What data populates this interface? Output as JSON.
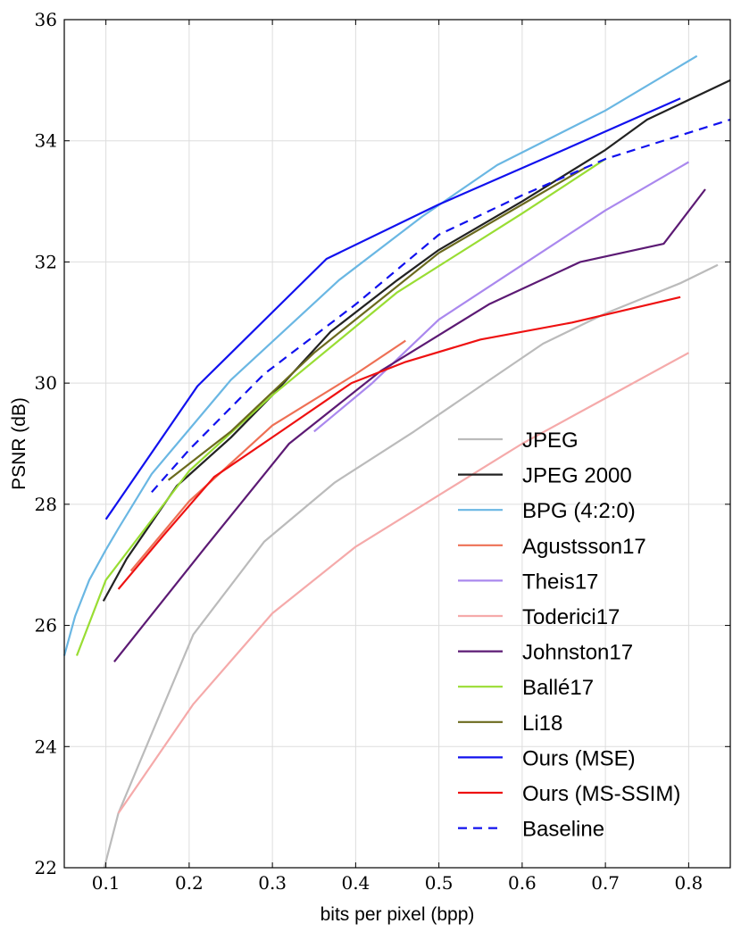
{
  "chart_data": {
    "type": "line",
    "title": "",
    "xlabel": "bits per pixel (bpp)",
    "ylabel": "PSNR (dB)",
    "xlim": [
      0.05,
      0.85
    ],
    "ylim": [
      22,
      36
    ],
    "grid": true,
    "legend_position": "lower-right",
    "x_ticks": [
      0.1,
      0.2,
      0.3,
      0.4,
      0.5,
      0.6,
      0.7,
      0.8
    ],
    "x_tick_labels": [
      "0.1",
      "0.2",
      "0.3",
      "0.4",
      "0.5",
      "0.6",
      "0.7",
      "0.8"
    ],
    "y_ticks": [
      22,
      24,
      26,
      28,
      30,
      32,
      34,
      36
    ],
    "y_tick_labels": [
      "22",
      "24",
      "26",
      "28",
      "30",
      "32",
      "34",
      "36"
    ],
    "series": [
      {
        "name": "JPEG",
        "color": "#bbbbbb",
        "dash": false,
        "points": [
          [
            0.098,
            22.0
          ],
          [
            0.115,
            22.9
          ],
          [
            0.205,
            25.85
          ],
          [
            0.29,
            27.38
          ],
          [
            0.375,
            28.36
          ],
          [
            0.47,
            29.2
          ],
          [
            0.55,
            29.95
          ],
          [
            0.625,
            30.65
          ],
          [
            0.7,
            31.15
          ],
          [
            0.79,
            31.65
          ],
          [
            0.835,
            31.95
          ]
        ]
      },
      {
        "name": "JPEG 2000",
        "color": "#222222",
        "dash": false,
        "points": [
          [
            0.097,
            26.4
          ],
          [
            0.125,
            27.1
          ],
          [
            0.185,
            28.3
          ],
          [
            0.25,
            29.1
          ],
          [
            0.3,
            29.8
          ],
          [
            0.37,
            30.85
          ],
          [
            0.45,
            31.7
          ],
          [
            0.5,
            32.2
          ],
          [
            0.6,
            33.0
          ],
          [
            0.7,
            33.85
          ],
          [
            0.75,
            34.35
          ],
          [
            0.85,
            35.0
          ]
        ]
      },
      {
        "name": "BPG (4:2:0)",
        "color": "#6ab7e3",
        "dash": false,
        "points": [
          [
            0.05,
            25.5
          ],
          [
            0.063,
            26.15
          ],
          [
            0.08,
            26.75
          ],
          [
            0.1,
            27.25
          ],
          [
            0.115,
            27.6
          ],
          [
            0.155,
            28.5
          ],
          [
            0.25,
            30.05
          ],
          [
            0.38,
            31.7
          ],
          [
            0.48,
            32.75
          ],
          [
            0.57,
            33.6
          ],
          [
            0.7,
            34.5
          ],
          [
            0.81,
            35.4
          ]
        ]
      },
      {
        "name": "Agustsson17",
        "color": "#ee7055",
        "dash": false,
        "points": [
          [
            0.13,
            26.9
          ],
          [
            0.2,
            28.05
          ],
          [
            0.3,
            29.3
          ],
          [
            0.4,
            30.15
          ],
          [
            0.46,
            30.7
          ]
        ]
      },
      {
        "name": "Theis17",
        "color": "#aa88ee",
        "dash": false,
        "points": [
          [
            0.35,
            29.2
          ],
          [
            0.42,
            30.0
          ],
          [
            0.5,
            31.05
          ],
          [
            0.6,
            31.95
          ],
          [
            0.7,
            32.85
          ],
          [
            0.8,
            33.65
          ]
        ]
      },
      {
        "name": "Toderici17",
        "color": "#f5aaaa",
        "dash": false,
        "points": [
          [
            0.115,
            22.9
          ],
          [
            0.205,
            24.7
          ],
          [
            0.3,
            26.2
          ],
          [
            0.4,
            27.3
          ],
          [
            0.5,
            28.15
          ],
          [
            0.6,
            29.0
          ],
          [
            0.7,
            29.75
          ],
          [
            0.8,
            30.5
          ]
        ]
      },
      {
        "name": "Johnston17",
        "color": "#5c1a74",
        "dash": false,
        "points": [
          [
            0.11,
            25.4
          ],
          [
            0.22,
            27.3
          ],
          [
            0.32,
            29.0
          ],
          [
            0.43,
            30.2
          ],
          [
            0.56,
            31.3
          ],
          [
            0.67,
            32.0
          ],
          [
            0.77,
            32.3
          ],
          [
            0.82,
            33.2
          ]
        ]
      },
      {
        "name": "Ballé17",
        "color": "#99dd33",
        "dash": false,
        "points": [
          [
            0.065,
            25.5
          ],
          [
            0.1,
            26.75
          ],
          [
            0.2,
            28.55
          ],
          [
            0.3,
            29.8
          ],
          [
            0.45,
            31.5
          ],
          [
            0.6,
            32.8
          ],
          [
            0.7,
            33.7
          ]
        ]
      },
      {
        "name": "Li18",
        "color": "#6b6a1e",
        "dash": false,
        "points": [
          [
            0.175,
            28.4
          ],
          [
            0.25,
            29.2
          ],
          [
            0.35,
            30.5
          ],
          [
            0.5,
            32.15
          ],
          [
            0.6,
            32.95
          ],
          [
            0.675,
            33.55
          ]
        ]
      },
      {
        "name": "Ours (MSE)",
        "color": "#1111ee",
        "dash": false,
        "points": [
          [
            0.1,
            27.75
          ],
          [
            0.21,
            29.95
          ],
          [
            0.365,
            32.05
          ],
          [
            0.5,
            32.95
          ],
          [
            0.65,
            33.85
          ],
          [
            0.79,
            34.7
          ]
        ]
      },
      {
        "name": "Ours (MS-SSIM)",
        "color": "#ee1111",
        "dash": false,
        "points": [
          [
            0.115,
            26.6
          ],
          [
            0.17,
            27.5
          ],
          [
            0.23,
            28.45
          ],
          [
            0.31,
            29.2
          ],
          [
            0.395,
            30.0
          ],
          [
            0.46,
            30.35
          ],
          [
            0.55,
            30.72
          ],
          [
            0.66,
            31.0
          ],
          [
            0.79,
            31.42
          ]
        ]
      },
      {
        "name": "Baseline",
        "color": "#1111ee",
        "dash": true,
        "points": [
          [
            0.155,
            28.2
          ],
          [
            0.2,
            28.9
          ],
          [
            0.29,
            30.15
          ],
          [
            0.4,
            31.3
          ],
          [
            0.5,
            32.45
          ],
          [
            0.6,
            33.1
          ],
          [
            0.7,
            33.7
          ],
          [
            0.85,
            34.35
          ]
        ]
      }
    ]
  }
}
